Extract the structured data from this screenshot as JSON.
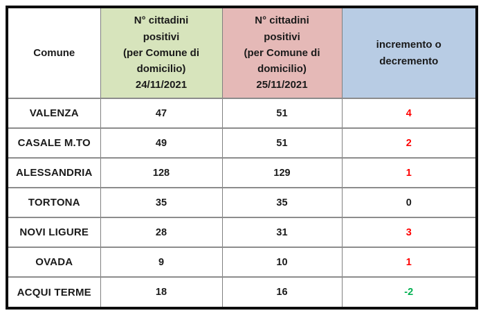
{
  "table": {
    "headers": {
      "comune": "Comune",
      "day1": "N° cittadini\npositivi\n(per Comune di\ndomicilio)\n24/11/2021",
      "day2": "N° cittadini\npositivi\n(per Comune di\ndomicilio)\n25/11/2021",
      "delta": "incremento o\ndecremento"
    },
    "rows": [
      {
        "comune": "VALENZA",
        "day1": "47",
        "day2": "51",
        "delta": "4",
        "delta_color": "#ff0000"
      },
      {
        "comune": "CASALE M.TO",
        "day1": "49",
        "day2": "51",
        "delta": "2",
        "delta_color": "#ff0000"
      },
      {
        "comune": "ALESSANDRIA",
        "day1": "128",
        "day2": "129",
        "delta": "1",
        "delta_color": "#ff0000"
      },
      {
        "comune": "TORTONA",
        "day1": "35",
        "day2": "35",
        "delta": "0",
        "delta_color": "#1a1a1a"
      },
      {
        "comune": "NOVI LIGURE",
        "day1": "28",
        "day2": "31",
        "delta": "3",
        "delta_color": "#ff0000"
      },
      {
        "comune": "OVADA",
        "day1": "9",
        "day2": "10",
        "delta": "1",
        "delta_color": "#ff0000"
      },
      {
        "comune": "ACQUI TERME",
        "day1": "18",
        "day2": "16",
        "delta": "-2",
        "delta_color": "#00b050"
      }
    ]
  },
  "colors": {
    "header_day1_bg": "#d7e4bc",
    "header_day2_bg": "#e5b9b7",
    "header_delta_bg": "#b8cce4",
    "increase_text": "#ff0000",
    "decrease_text": "#00b050",
    "neutral_text": "#1a1a1a",
    "outer_border": "#0d0d0d",
    "grid_line": "#7f7f7f"
  },
  "chart_data": {
    "type": "table",
    "title": "",
    "columns": [
      "Comune",
      "N° cittadini positivi (per Comune di domicilio) 24/11/2021",
      "N° cittadini positivi (per Comune di domicilio) 25/11/2021",
      "incremento o decremento"
    ],
    "rows": [
      [
        "VALENZA",
        47,
        51,
        4
      ],
      [
        "CASALE M.TO",
        49,
        51,
        2
      ],
      [
        "ALESSANDRIA",
        128,
        129,
        1
      ],
      [
        "TORTONA",
        35,
        35,
        0
      ],
      [
        "NOVI LIGURE",
        28,
        31,
        3
      ],
      [
        "OVADA",
        9,
        10,
        1
      ],
      [
        "ACQUI TERME",
        18,
        16,
        -2
      ]
    ]
  }
}
